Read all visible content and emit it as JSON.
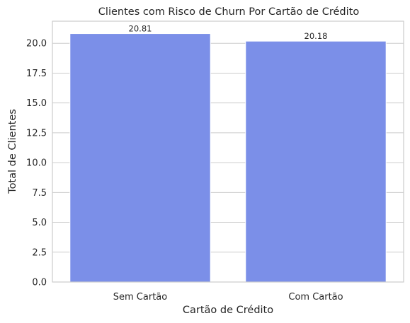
{
  "chart_data": {
    "type": "bar",
    "title": "Clientes com Risco de Churn Por Cartão de Crédito",
    "xlabel": "Cartão de Crédito",
    "ylabel": "Total de Clientes",
    "categories": [
      "Sem Cartão",
      "Com Cartão"
    ],
    "values": [
      20.81,
      20.18
    ],
    "data_labels": [
      "20.81",
      "20.18"
    ],
    "ylim": [
      0,
      21.85
    ],
    "yticks": [
      0.0,
      2.5,
      5.0,
      7.5,
      10.0,
      12.5,
      15.0,
      17.5,
      20.0
    ],
    "ytick_labels": [
      "0.0",
      "2.5",
      "5.0",
      "7.5",
      "10.0",
      "12.5",
      "15.0",
      "17.5",
      "20.0"
    ],
    "grid": true,
    "legend": "none",
    "colors": {
      "bar": "#7b8fe8",
      "grid": "#cccccc",
      "frame": "#cccccc",
      "text": "#262626"
    }
  }
}
